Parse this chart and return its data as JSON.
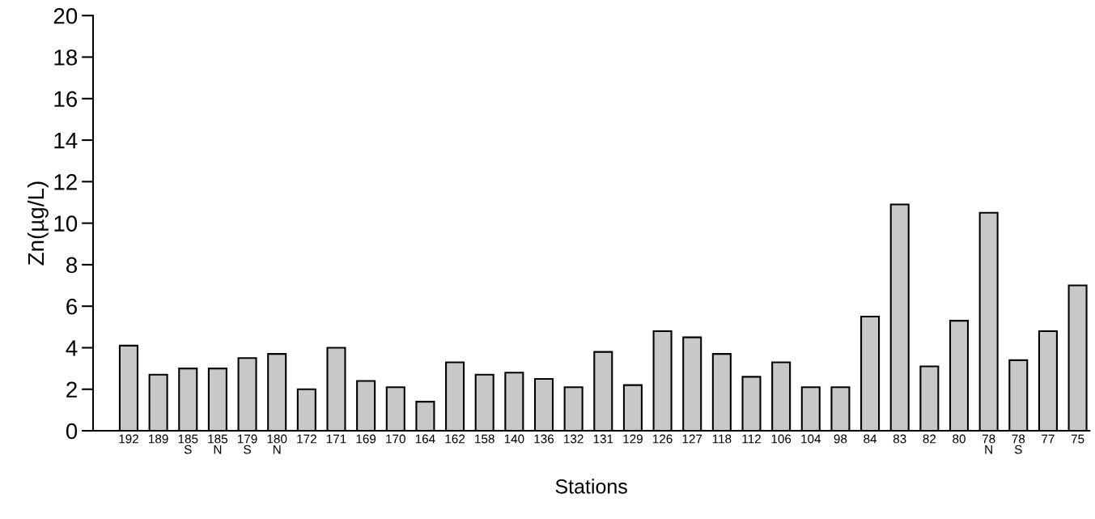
{
  "chart_data": {
    "type": "bar",
    "xlabel": "Stations",
    "ylabel": "Zn(µg/L)",
    "categories": [
      "192",
      "189",
      "185\nS",
      "185\nN",
      "179\nS",
      "180\nN",
      "172",
      "171",
      "169",
      "170",
      "164",
      "162",
      "158",
      "140",
      "136",
      "132",
      "131",
      "129",
      "126",
      "127",
      "118",
      "112",
      "106",
      "104",
      "98",
      "84",
      "83",
      "82",
      "80",
      "78\nN",
      "78\nS",
      "77",
      "75"
    ],
    "values": [
      4.1,
      2.7,
      3.0,
      3.0,
      3.5,
      3.7,
      2.0,
      4.0,
      2.4,
      2.1,
      1.4,
      3.3,
      2.7,
      2.8,
      2.5,
      2.1,
      3.8,
      2.2,
      4.8,
      4.5,
      3.7,
      2.6,
      3.3,
      2.1,
      2.1,
      5.5,
      10.9,
      3.1,
      5.3,
      10.5,
      3.4,
      4.8,
      7.0
    ],
    "color": "#c8c8c8",
    "ylim": [
      0,
      20
    ],
    "yticks": [
      0,
      2,
      4,
      6,
      8,
      10,
      12,
      14,
      16,
      18,
      20
    ],
    "grid": false,
    "legend": false
  }
}
